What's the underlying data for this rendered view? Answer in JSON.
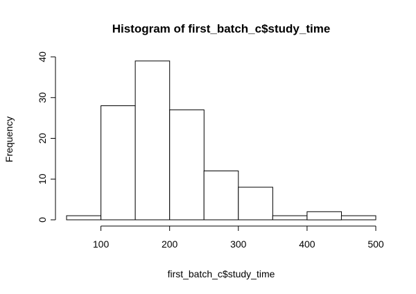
{
  "chart_data": {
    "type": "bar",
    "subtype": "histogram",
    "title": "Histogram of first_batch_c$study_time",
    "xlabel": "first_batch_c$study_time",
    "ylabel": "Frequency",
    "bins": [
      {
        "start": 50,
        "end": 100,
        "count": 1
      },
      {
        "start": 100,
        "end": 150,
        "count": 28
      },
      {
        "start": 150,
        "end": 200,
        "count": 39
      },
      {
        "start": 200,
        "end": 250,
        "count": 27
      },
      {
        "start": 250,
        "end": 300,
        "count": 12
      },
      {
        "start": 300,
        "end": 350,
        "count": 8
      },
      {
        "start": 350,
        "end": 400,
        "count": 1
      },
      {
        "start": 400,
        "end": 450,
        "count": 2
      },
      {
        "start": 450,
        "end": 500,
        "count": 1
      }
    ],
    "xticks": [
      100,
      200,
      300,
      400,
      500
    ],
    "yticks": [
      0,
      10,
      20,
      30,
      40
    ],
    "xlim": [
      50,
      500
    ],
    "ylim": [
      0,
      40
    ],
    "grid": false,
    "colors": {
      "bar_fill": "#ffffff",
      "bar_stroke": "#000000"
    }
  }
}
